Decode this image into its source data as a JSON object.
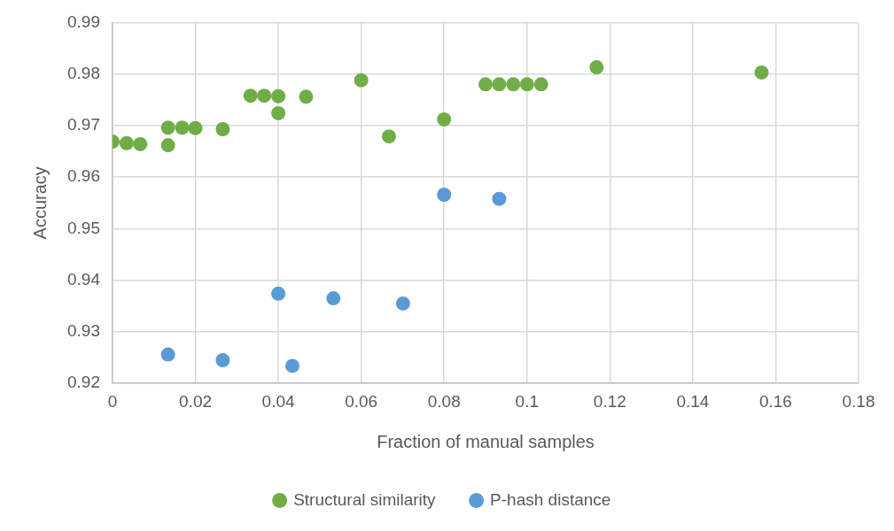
{
  "chart_data": {
    "type": "scatter",
    "xlabel": "Fraction of manual samples",
    "ylabel": "Accuracy",
    "xlim": [
      0,
      0.18
    ],
    "xticks": [
      0,
      0.02,
      0.04,
      0.06,
      0.08,
      0.1,
      0.12,
      0.14,
      0.16,
      0.18
    ],
    "ylim": [
      0.92,
      0.99
    ],
    "yticks": [
      0.92,
      0.93,
      0.94,
      0.95,
      0.96,
      0.97,
      0.98,
      0.99
    ],
    "grid": true,
    "legend": "bottom",
    "marker": "circle",
    "series": [
      {
        "name": "Structural similarity",
        "color": "#70ad47",
        "x": [
          0,
          0.0034,
          0.0067,
          0.0134,
          0.0134,
          0.0168,
          0.02,
          0.0266,
          0.0333,
          0.0366,
          0.04,
          0.04,
          0.0467,
          0.06,
          0.0667,
          0.08,
          0.09,
          0.0933,
          0.0967,
          0.1,
          0.1034,
          0.1168,
          0.1566
        ],
        "values": [
          0.9669,
          0.9666,
          0.9664,
          0.9696,
          0.9662,
          0.9696,
          0.9695,
          0.9693,
          0.9758,
          0.9758,
          0.9757,
          0.9724,
          0.9756,
          0.9788,
          0.9679,
          0.9712,
          0.978,
          0.978,
          0.978,
          0.978,
          0.978,
          0.9813,
          0.9803
        ]
      },
      {
        "name": "P-hash distance",
        "color": "#5b9bd5",
        "x": [
          0.0134,
          0.0266,
          0.04,
          0.0434,
          0.0533,
          0.0701,
          0.08,
          0.0933
        ],
        "values": [
          0.9256,
          0.9245,
          0.9374,
          0.9234,
          0.9365,
          0.9355,
          0.9566,
          0.9558
        ]
      }
    ]
  }
}
